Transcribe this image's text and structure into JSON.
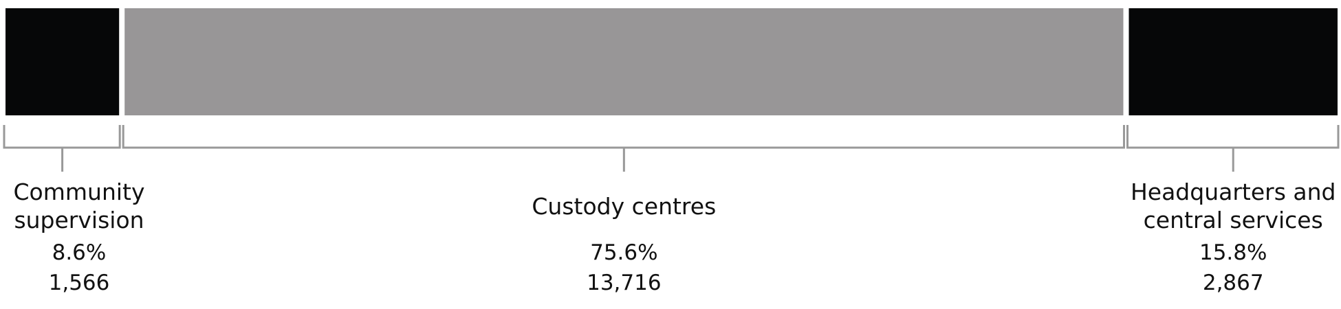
{
  "chart_data": {
    "type": "stacked-bar",
    "categories": [
      "Community supervision",
      "Custody centres",
      "Headquarters and central services"
    ],
    "values": [
      8.6,
      75.6,
      15.8
    ],
    "value_labels": [
      "8.6%",
      "75.6%",
      "15.8%"
    ],
    "counts": [
      1566,
      13716,
      2867
    ],
    "count_labels": [
      "1,566",
      "13,716",
      "2,867"
    ],
    "colors": [
      "#060708",
      "#989697",
      "#060708"
    ]
  }
}
